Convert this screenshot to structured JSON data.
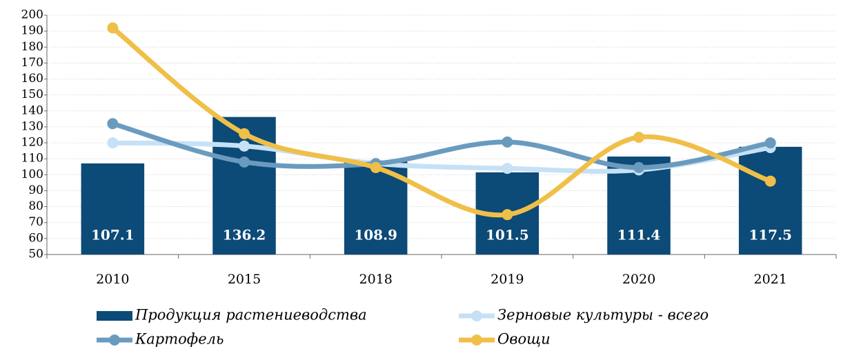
{
  "chart_data": {
    "type": "bar-line",
    "categories": [
      "2010",
      "2015",
      "2018",
      "2019",
      "2020",
      "2021"
    ],
    "series": [
      {
        "name": "Продукция растениеводства",
        "type": "bar",
        "color": "#0c4a77",
        "values": [
          107.1,
          136.2,
          108.9,
          101.5,
          111.4,
          117.5
        ]
      },
      {
        "name": "Зерновые культуры - всего",
        "type": "line",
        "color": "#c6e1f6",
        "values": [
          120,
          118,
          107,
          104,
          103,
          117
        ]
      },
      {
        "name": "Картофель",
        "type": "line",
        "color": "#6a9bbf",
        "values": [
          132,
          108,
          107,
          120.5,
          104.5,
          120
        ]
      },
      {
        "name": "Овощи",
        "type": "line",
        "color": "#f0bf48",
        "values": [
          192,
          125.7,
          104.5,
          75,
          123.5,
          96
        ]
      }
    ],
    "ylim": [
      50,
      200
    ],
    "yticks": [
      50,
      60,
      70,
      80,
      90,
      100,
      110,
      120,
      130,
      140,
      150,
      160,
      170,
      180,
      190,
      200
    ],
    "grid": true
  }
}
